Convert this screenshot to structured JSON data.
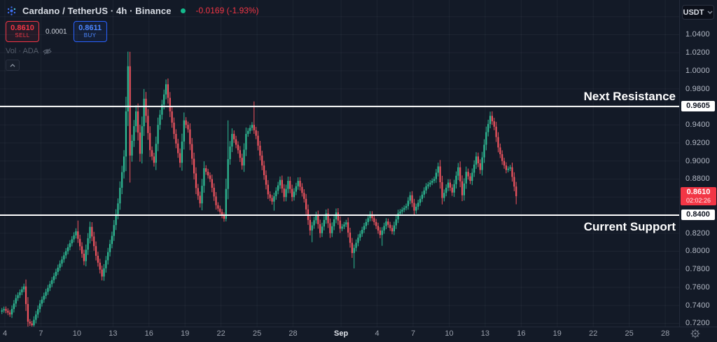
{
  "header": {
    "symbol_title": "Cardano / TetherUS · 4h · Binance",
    "change_text": "-0.0169 (-1.93%)",
    "sell": {
      "price": "0.8610",
      "label": "SELL"
    },
    "spread": "0.0001",
    "buy": {
      "price": "0.8611",
      "label": "BUY"
    },
    "volume_label": "Vol · ADA"
  },
  "price_axis": {
    "currency_button_label": "USDT",
    "ticks": [
      {
        "value": 1.04,
        "label": "1.0400"
      },
      {
        "value": 1.02,
        "label": "1.0200"
      },
      {
        "value": 1.0,
        "label": "1.0000"
      },
      {
        "value": 0.98,
        "label": "0.9800"
      },
      {
        "value": 0.94,
        "label": "0.9400"
      },
      {
        "value": 0.92,
        "label": "0.9200"
      },
      {
        "value": 0.9,
        "label": "0.9000"
      },
      {
        "value": 0.88,
        "label": "0.8800"
      },
      {
        "value": 0.82,
        "label": "0.8200"
      },
      {
        "value": 0.8,
        "label": "0.8000"
      },
      {
        "value": 0.78,
        "label": "0.7800"
      },
      {
        "value": 0.76,
        "label": "0.7600"
      },
      {
        "value": 0.74,
        "label": "0.7400"
      },
      {
        "value": 0.72,
        "label": "0.7200"
      }
    ]
  },
  "time_axis": {
    "ticks": [
      {
        "day": 0,
        "label": "4"
      },
      {
        "day": 3,
        "label": "7"
      },
      {
        "day": 6,
        "label": "10"
      },
      {
        "day": 9,
        "label": "13"
      },
      {
        "day": 12,
        "label": "16"
      },
      {
        "day": 15,
        "label": "19"
      },
      {
        "day": 18,
        "label": "22"
      },
      {
        "day": 21,
        "label": "25"
      },
      {
        "day": 24,
        "label": "28"
      },
      {
        "day": 28,
        "label": "Sep",
        "bold": true
      },
      {
        "day": 31,
        "label": "4"
      },
      {
        "day": 34,
        "label": "7"
      },
      {
        "day": 37,
        "label": "10"
      },
      {
        "day": 40,
        "label": "13"
      },
      {
        "day": 43,
        "label": "16"
      },
      {
        "day": 46,
        "label": "19"
      },
      {
        "day": 49,
        "label": "22"
      },
      {
        "day": 52,
        "label": "25"
      },
      {
        "day": 55,
        "label": "28"
      }
    ]
  },
  "chart_data": {
    "type": "candlestick",
    "timeframe_per_candle_hours": 4,
    "candles_per_day": 6,
    "ylim": [
      0.7165,
      1.0784
    ],
    "xlim_days": [
      -0.41,
      56.16
    ],
    "grid": {
      "price_min": 0.72,
      "price_max": 1.06,
      "price_step": 0.02
    },
    "levels": [
      {
        "price": 0.9605,
        "axis_label": "0.9605",
        "text": "Next Resistance",
        "text_side": "above"
      },
      {
        "price": 0.84,
        "axis_label": "0.8400",
        "text": "Current Support",
        "text_side": "below"
      }
    ],
    "last_price": {
      "value": 0.861,
      "label": "0.8610",
      "countdown": "02:02:26",
      "direction": "down"
    },
    "swings": [
      [
        -2,
        0.733
      ],
      [
        0,
        0.736
      ],
      [
        3,
        0.73
      ],
      [
        6,
        0.748
      ],
      [
        10,
        0.761
      ],
      [
        12,
        0.722
      ],
      [
        14,
        0.718
      ],
      [
        18,
        0.742
      ],
      [
        24,
        0.768
      ],
      [
        31,
        0.8
      ],
      [
        36,
        0.822
      ],
      [
        40,
        0.789
      ],
      [
        43,
        0.827
      ],
      [
        46,
        0.795
      ],
      [
        49,
        0.772
      ],
      [
        54,
        0.817
      ],
      [
        57,
        0.853
      ],
      [
        60,
        0.905
      ],
      [
        62,
        1.005
      ],
      [
        63,
        0.906
      ],
      [
        66,
        0.955
      ],
      [
        68,
        0.908
      ],
      [
        70,
        0.969
      ],
      [
        73,
        0.912
      ],
      [
        75,
        0.898
      ],
      [
        77,
        0.94
      ],
      [
        81,
        0.985
      ],
      [
        83,
        0.955
      ],
      [
        85,
        0.93
      ],
      [
        88,
        0.898
      ],
      [
        90,
        0.945
      ],
      [
        92,
        0.935
      ],
      [
        96,
        0.87
      ],
      [
        98,
        0.853
      ],
      [
        100,
        0.892
      ],
      [
        103,
        0.88
      ],
      [
        106,
        0.851
      ],
      [
        110,
        0.836
      ],
      [
        112,
        0.902
      ],
      [
        114,
        0.93
      ],
      [
        117,
        0.912
      ],
      [
        119,
        0.895
      ],
      [
        121,
        0.93
      ],
      [
        124,
        0.94
      ],
      [
        126,
        0.928
      ],
      [
        129,
        0.895
      ],
      [
        132,
        0.863
      ],
      [
        134,
        0.855
      ],
      [
        138,
        0.879
      ],
      [
        140,
        0.86
      ],
      [
        142,
        0.878
      ],
      [
        144,
        0.86
      ],
      [
        147,
        0.878
      ],
      [
        150,
        0.858
      ],
      [
        153,
        0.823
      ],
      [
        156,
        0.84
      ],
      [
        158,
        0.82
      ],
      [
        161,
        0.842
      ],
      [
        163,
        0.82
      ],
      [
        166,
        0.843
      ],
      [
        168,
        0.825
      ],
      [
        171,
        0.832
      ],
      [
        174,
        0.798
      ],
      [
        177,
        0.815
      ],
      [
        180,
        0.828
      ],
      [
        183,
        0.841
      ],
      [
        186,
        0.828
      ],
      [
        188,
        0.818
      ],
      [
        191,
        0.833
      ],
      [
        194,
        0.822
      ],
      [
        197,
        0.842
      ],
      [
        201,
        0.85
      ],
      [
        203,
        0.862
      ],
      [
        205,
        0.845
      ],
      [
        208,
        0.858
      ],
      [
        211,
        0.872
      ],
      [
        215,
        0.88
      ],
      [
        217,
        0.894
      ],
      [
        219,
        0.859
      ],
      [
        222,
        0.876
      ],
      [
        224,
        0.865
      ],
      [
        227,
        0.893
      ],
      [
        229,
        0.862
      ],
      [
        231,
        0.888
      ],
      [
        233,
        0.878
      ],
      [
        236,
        0.905
      ],
      [
        238,
        0.89
      ],
      [
        241,
        0.932
      ],
      [
        243,
        0.95
      ],
      [
        245,
        0.938
      ],
      [
        247,
        0.915
      ],
      [
        249,
        0.9
      ],
      [
        251,
        0.89
      ],
      [
        253,
        0.893
      ],
      [
        256,
        0.861
      ]
    ],
    "wick_overrides": {
      "highs": [
        [
          62,
          1.021
        ],
        [
          36,
          0.834
        ],
        [
          111,
          0.945
        ],
        [
          124,
          0.966
        ],
        [
          243,
          0.955
        ]
      ],
      "lows": [
        [
          14,
          0.714
        ],
        [
          110,
          0.833
        ],
        [
          134,
          0.845
        ],
        [
          153,
          0.81
        ],
        [
          174,
          0.781
        ],
        [
          188,
          0.806
        ],
        [
          255,
          0.852
        ]
      ]
    },
    "colors": {
      "up": "#2ebd95",
      "down": "#f0545f",
      "background": "#131a27",
      "grid": "rgba(150,160,182,0.08)",
      "level_line": "#ffffff",
      "last_price_label_bg": "#f23645",
      "axis_text": "#b4bac6"
    }
  }
}
